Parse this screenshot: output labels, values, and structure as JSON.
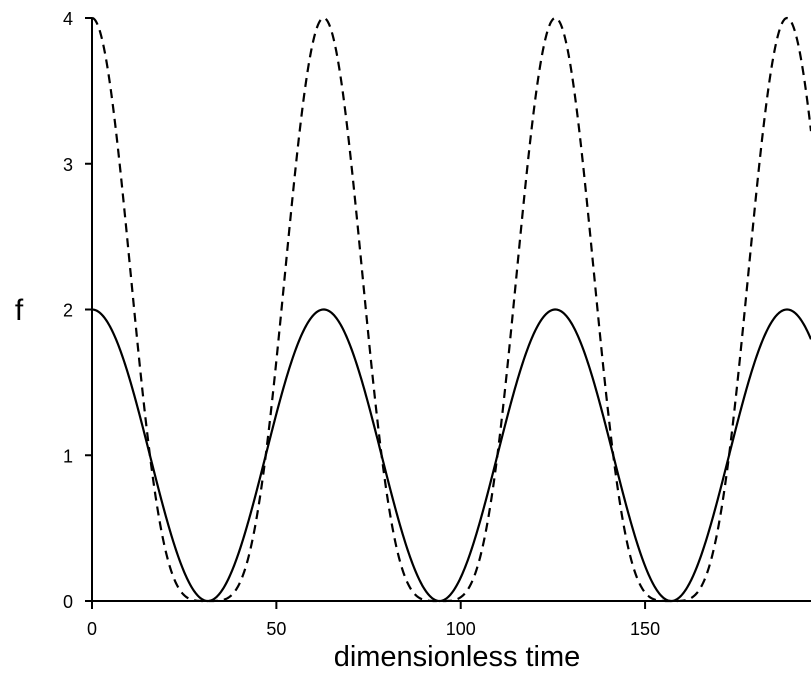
{
  "chart_data": {
    "type": "line",
    "title": "",
    "xlabel": "dimensionless time",
    "ylabel": "f",
    "xlim": [
      0,
      195
    ],
    "ylim": [
      0,
      4
    ],
    "x_ticks": [
      0,
      50,
      100,
      150
    ],
    "y_ticks": [
      0,
      1,
      2,
      3,
      4
    ],
    "grid": false,
    "legend": "none",
    "period": 62.83,
    "series": [
      {
        "style": "solid",
        "color": "#000000",
        "formula": "1 + cos(x/10)",
        "x": [
          0,
          15.7,
          31.4,
          47.1,
          62.8,
          78.5,
          94.2,
          110.0,
          125.7,
          141.4,
          157.1,
          172.8,
          188.5
        ],
        "y": [
          2,
          1,
          0,
          1,
          2,
          1,
          0,
          1,
          2,
          1,
          0,
          1,
          2
        ]
      },
      {
        "style": "dashed",
        "color": "#000000",
        "formula": "(1 + cos(x/10))^2",
        "x": [
          0,
          15.7,
          31.4,
          47.1,
          62.8,
          78.5,
          94.2,
          110.0,
          125.7,
          141.4,
          157.1,
          172.8,
          188.5
        ],
        "y": [
          4,
          1,
          0,
          1,
          4,
          1,
          0,
          1,
          4,
          1,
          0,
          1,
          4
        ]
      }
    ]
  }
}
